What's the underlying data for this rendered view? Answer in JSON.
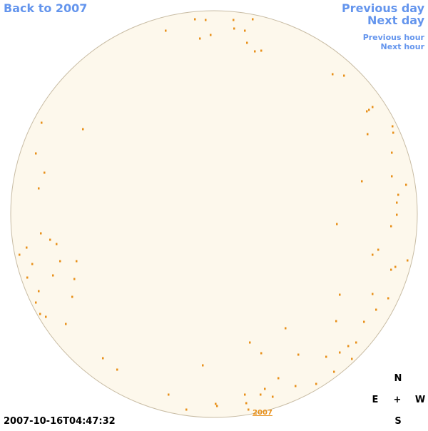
{
  "navigation": {
    "back": "Back to 2007",
    "previous_day": "Previous day",
    "next_day": "Next day",
    "previous_hour": "Previous hour",
    "next_hour": "Next hour"
  },
  "map": {
    "label": "2007"
  },
  "timestamp": "2007-10-16T04:47:32",
  "compass": {
    "north": "N",
    "east": "E",
    "center": "+",
    "west": "W",
    "south": "S"
  }
}
